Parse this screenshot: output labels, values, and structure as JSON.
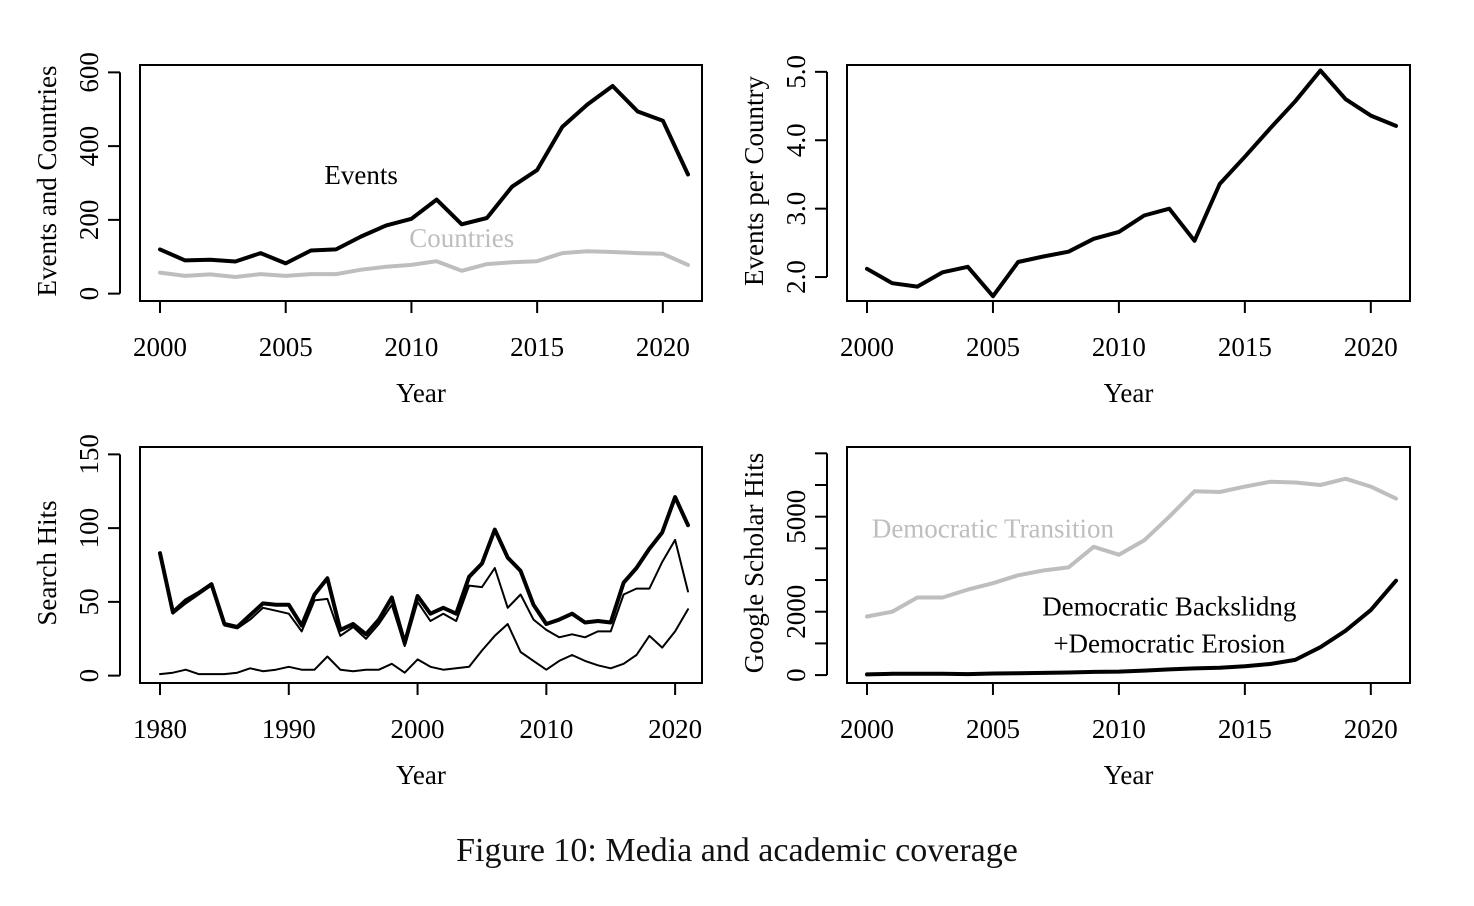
{
  "caption": "Figure 10: Media and academic coverage",
  "colors": {
    "black": "#000000",
    "gray": "#bebebe"
  },
  "chart_data": [
    {
      "type": "line",
      "xlabel": "Year",
      "ylabel": "Events and Countries",
      "xlim": [
        2000,
        2021
      ],
      "ylim": [
        -20,
        620
      ],
      "xticks": [
        2000,
        2005,
        2010,
        2015,
        2020
      ],
      "yticks": [
        0,
        200,
        400,
        600
      ],
      "x": [
        2000,
        2001,
        2002,
        2003,
        2004,
        2005,
        2006,
        2007,
        2008,
        2009,
        2010,
        2011,
        2012,
        2013,
        2014,
        2015,
        2016,
        2017,
        2018,
        2019,
        2020,
        2021
      ],
      "series": [
        {
          "name": "Events",
          "color": "#000000",
          "width": 4,
          "values": [
            120,
            90,
            92,
            87,
            110,
            82,
            117,
            120,
            155,
            185,
            203,
            255,
            188,
            205,
            290,
            335,
            452,
            513,
            563,
            494,
            469,
            323
          ]
        },
        {
          "name": "Countries",
          "color": "#bebebe",
          "width": 4,
          "values": [
            57,
            48,
            52,
            45,
            53,
            48,
            53,
            53,
            65,
            73,
            78,
            88,
            62,
            80,
            85,
            88,
            110,
            115,
            113,
            110,
            108,
            78
          ]
        }
      ],
      "annotations": [
        {
          "text": "Events",
          "x": 2008,
          "y": 297,
          "color": "#000000"
        },
        {
          "text": "Countries",
          "x": 2012,
          "y": 126,
          "color": "#bebebe"
        }
      ]
    },
    {
      "type": "line",
      "xlabel": "Year",
      "ylabel": "Events per Country",
      "xlim": [
        2000,
        2021
      ],
      "ylim": [
        1.65,
        5.1
      ],
      "xticks": [
        2000,
        2005,
        2010,
        2015,
        2020
      ],
      "yticks": [
        2.0,
        3.0,
        4.0,
        5.0
      ],
      "ytick_labels": [
        "2.0",
        "3.0",
        "4.0",
        "5.0"
      ],
      "x": [
        2000,
        2001,
        2002,
        2003,
        2004,
        2005,
        2006,
        2007,
        2008,
        2009,
        2010,
        2011,
        2012,
        2013,
        2014,
        2015,
        2016,
        2017,
        2018,
        2019,
        2020,
        2021
      ],
      "series": [
        {
          "color": "#000000",
          "width": 4,
          "values": [
            2.12,
            1.91,
            1.86,
            2.07,
            2.15,
            1.72,
            2.22,
            2.3,
            2.37,
            2.56,
            2.66,
            2.9,
            3.0,
            2.53,
            3.36,
            3.76,
            4.17,
            4.57,
            5.02,
            4.6,
            4.36,
            4.21
          ]
        }
      ]
    },
    {
      "type": "line",
      "xlabel": "Year",
      "ylabel": "Search Hits",
      "xlim": [
        1980,
        2021
      ],
      "ylim": [
        -5,
        155
      ],
      "xticks": [
        1980,
        1990,
        2000,
        2010,
        2020
      ],
      "yticks": [
        0,
        50,
        100,
        150
      ],
      "x": [
        1980,
        1981,
        1982,
        1983,
        1984,
        1985,
        1986,
        1987,
        1988,
        1989,
        1990,
        1991,
        1992,
        1993,
        1994,
        1995,
        1996,
        1997,
        1998,
        1999,
        2000,
        2001,
        2002,
        2003,
        2004,
        2005,
        2006,
        2007,
        2008,
        2009,
        2010,
        2011,
        2012,
        2013,
        2014,
        2015,
        2016,
        2017,
        2018,
        2019,
        2020,
        2021
      ],
      "series": [
        {
          "color": "#000000",
          "width": 4,
          "values": [
            83,
            43,
            51,
            56,
            62,
            35,
            33,
            41,
            49,
            48,
            48,
            34,
            55,
            66,
            31,
            35,
            28,
            38,
            53,
            22,
            54,
            42,
            46,
            42,
            67,
            76,
            99,
            80,
            71,
            48,
            35,
            38,
            42,
            36,
            37,
            36,
            63,
            73,
            86,
            97,
            121,
            102
          ]
        },
        {
          "color": "#000000",
          "width": 2,
          "values": [
            81,
            42,
            49,
            55,
            61,
            34,
            32,
            38,
            46,
            44,
            42,
            30,
            51,
            52,
            27,
            33,
            25,
            35,
            48,
            20,
            50,
            37,
            42,
            37,
            61,
            60,
            73,
            46,
            55,
            38,
            31,
            26,
            28,
            26,
            30,
            30,
            55,
            59,
            59,
            77,
            92,
            57
          ]
        },
        {
          "color": "#000000",
          "width": 2,
          "values": [
            1,
            2,
            4,
            1,
            1,
            1,
            2,
            5,
            3,
            4,
            6,
            4,
            4,
            13,
            4,
            3,
            4,
            4,
            8,
            2,
            11,
            6,
            4,
            5,
            6,
            17,
            27,
            35,
            16,
            10,
            4,
            10,
            14,
            10,
            7,
            5,
            8,
            14,
            27,
            19,
            30,
            45
          ]
        }
      ]
    },
    {
      "type": "line",
      "xlabel": "Year",
      "ylabel": "Google Scholar Hits",
      "xlim": [
        2000,
        2021
      ],
      "ylim": [
        -250,
        7200
      ],
      "xticks": [
        2000,
        2005,
        2010,
        2015,
        2020
      ],
      "yticks": [
        0,
        2000,
        5000
      ],
      "yminor": [
        1000,
        3000,
        4000,
        6000,
        7000
      ],
      "x": [
        2000,
        2001,
        2002,
        2003,
        2004,
        2005,
        2006,
        2007,
        2008,
        2009,
        2010,
        2011,
        2012,
        2013,
        2014,
        2015,
        2016,
        2017,
        2018,
        2019,
        2020,
        2021
      ],
      "series": [
        {
          "name": "Democratic Transition",
          "color": "#bebebe",
          "width": 4,
          "values": [
            1850,
            2000,
            2450,
            2450,
            2700,
            2900,
            3150,
            3300,
            3400,
            4050,
            3800,
            4250,
            5000,
            5800,
            5780,
            5950,
            6100,
            6080,
            6000,
            6200,
            5950,
            5570
          ]
        },
        {
          "name": "Democratic Backslidng +Democratic Erosion",
          "color": "#000000",
          "width": 4,
          "values": [
            20,
            40,
            40,
            40,
            30,
            50,
            60,
            70,
            80,
            100,
            110,
            140,
            180,
            210,
            230,
            280,
            350,
            480,
            880,
            1400,
            2050,
            2980
          ]
        }
      ],
      "annotations": [
        {
          "text": "Democratic Transition",
          "x": 2005,
          "y": 4350,
          "color": "#bebebe"
        },
        {
          "text": "Democratic Backslidng",
          "x": 2012,
          "y": 1880,
          "color": "#000000"
        },
        {
          "text": "+Democratic Erosion",
          "x": 2012,
          "y": 720,
          "color": "#000000"
        }
      ]
    }
  ]
}
